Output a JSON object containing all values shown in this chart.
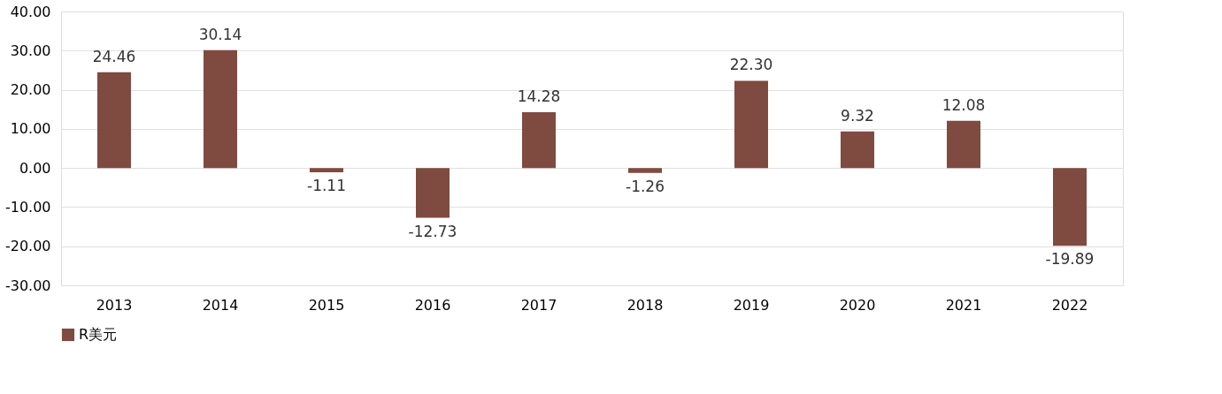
{
  "chart_data": {
    "type": "bar",
    "categories": [
      "2013",
      "2014",
      "2015",
      "2016",
      "2017",
      "2018",
      "2019",
      "2020",
      "2021",
      "2022"
    ],
    "series": [
      {
        "name": "R美元",
        "color": "#7f4a40",
        "values": [
          24.46,
          30.14,
          -1.11,
          -12.73,
          14.28,
          -1.26,
          22.3,
          9.32,
          12.08,
          -19.89
        ],
        "value_labels": [
          "24.46",
          "30.14",
          "-1.11",
          "-12.73",
          "14.28",
          "-1.26",
          "22.30",
          "9.32",
          "12.08",
          "-19.89"
        ]
      }
    ],
    "ylim": [
      -30,
      40
    ],
    "yticks": [
      {
        "value": -30,
        "label": "-30.00"
      },
      {
        "value": -20,
        "label": "-20.00"
      },
      {
        "value": -10,
        "label": "-10.00"
      },
      {
        "value": 0,
        "label": "0.00"
      },
      {
        "value": 10,
        "label": "10.00"
      },
      {
        "value": 20,
        "label": "20.00"
      },
      {
        "value": 30,
        "label": "30.00"
      },
      {
        "value": 40,
        "label": "40.00"
      }
    ],
    "grid": "y",
    "legend": "bottom"
  }
}
